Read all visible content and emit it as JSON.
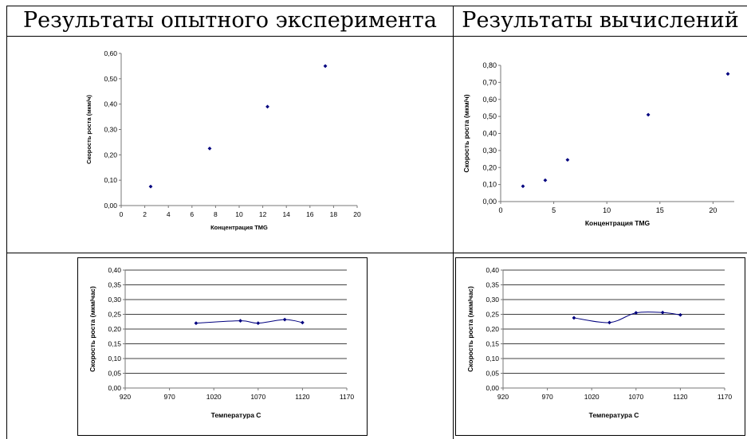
{
  "table": {
    "headers": [
      "Результаты опытного эксперимента",
      "Результаты вычислений"
    ]
  },
  "chart_data": [
    {
      "type": "scatter",
      "xlabel": "Концентрация TMG",
      "ylabel": "Скорость роста (мкм/ч)",
      "xlim": [
        0,
        20
      ],
      "ylim": [
        0,
        0.6
      ],
      "xticks": [
        0,
        2,
        4,
        6,
        8,
        10,
        12,
        14,
        16,
        18,
        20
      ],
      "yticks": [
        "0,00",
        "0,10",
        "0,20",
        "0,30",
        "0,40",
        "0,50",
        "0,60"
      ],
      "grid": false,
      "series": [
        {
          "x": [
            2.5,
            7.5,
            12.4,
            17.3
          ],
          "y": [
            0.075,
            0.225,
            0.39,
            0.55
          ],
          "color": "#00007f"
        }
      ]
    },
    {
      "type": "scatter",
      "xlabel": "Концентрация TMG",
      "ylabel": "Скорость роста (мкм/ч)",
      "xlim": [
        0,
        22
      ],
      "ylim": [
        0,
        0.8
      ],
      "xticks": [
        0,
        5,
        10,
        15,
        20
      ],
      "yticks": [
        "0,00",
        "0,10",
        "0,20",
        "0,30",
        "0,40",
        "0,50",
        "0,60",
        "0,70",
        "0,80"
      ],
      "grid": false,
      "series": [
        {
          "x": [
            2.1,
            4.2,
            6.3,
            13.9,
            21.4
          ],
          "y": [
            0.09,
            0.125,
            0.245,
            0.51,
            0.75
          ],
          "color": "#00007f"
        }
      ]
    },
    {
      "type": "line",
      "xlabel": "Температура С",
      "ylabel": "Скорость роста (мкм/час)",
      "xlim": [
        920,
        1170
      ],
      "ylim": [
        0,
        0.4
      ],
      "xticks": [
        920,
        970,
        1020,
        1070,
        1120,
        1170
      ],
      "yticks": [
        "0,00",
        "0,05",
        "0,10",
        "0,15",
        "0,20",
        "0,25",
        "0,30",
        "0,35",
        "0,40"
      ],
      "grid": true,
      "series": [
        {
          "x": [
            1000,
            1050,
            1070,
            1100,
            1120
          ],
          "y": [
            0.22,
            0.228,
            0.22,
            0.232,
            0.222
          ],
          "color": "#00007f"
        }
      ]
    },
    {
      "type": "line",
      "xlabel": "Температура С",
      "ylabel": "Скорость роста (мкм/час)",
      "xlim": [
        920,
        1170
      ],
      "ylim": [
        0,
        0.4
      ],
      "xticks": [
        920,
        970,
        1020,
        1070,
        1120,
        1170
      ],
      "yticks": [
        "0,00",
        "0,05",
        "0,10",
        "0,15",
        "0,20",
        "0,25",
        "0,30",
        "0,35",
        "0,40"
      ],
      "grid": true,
      "series": [
        {
          "x": [
            1000,
            1040,
            1070,
            1100,
            1120
          ],
          "y": [
            0.238,
            0.222,
            0.255,
            0.256,
            0.248
          ],
          "color": "#00007f"
        }
      ]
    }
  ]
}
